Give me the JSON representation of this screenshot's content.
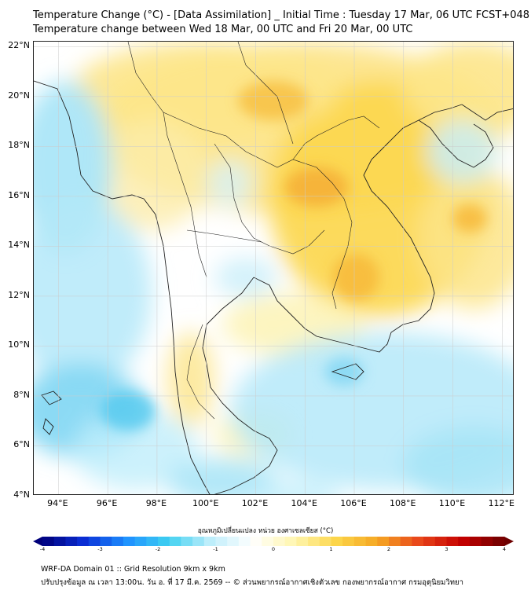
{
  "header": {
    "title_line1": "Temperature Change (°C) - [Data Assimilation] _ Initial Time : Tuesday 17 Mar, 06 UTC FCST+048",
    "title_line2": "Temperature change between Wed 18 Mar, 00 UTC and Fri 20 Mar, 00 UTC"
  },
  "map": {
    "lat_labels": [
      "22°N",
      "20°N",
      "18°N",
      "16°N",
      "14°N",
      "12°N",
      "10°N",
      "8°N",
      "6°N",
      "4°N"
    ],
    "lon_labels": [
      "94°E",
      "96°E",
      "98°E",
      "100°E",
      "102°E",
      "104°E",
      "106°E",
      "108°E",
      "110°E",
      "112°E"
    ],
    "extent": {
      "lon_min": 93,
      "lon_max": 112.5,
      "lat_min": 4,
      "lat_max": 22.2
    },
    "grid": true,
    "colors": {
      "strong_warm": "#f29a1e",
      "warm": "#fcd64a",
      "light_warm": "#fdf2b0",
      "neutral": "#ffffff",
      "light_cool": "#c8eefa",
      "cool": "#8fdcf5",
      "coastline": "#222222",
      "gridline": "#cccccc"
    }
  },
  "colorbar": {
    "label": "อุณหภูมิเปลี่ยนแปลง หน่วย องศาเซลเซียส (°C)",
    "min": -4,
    "max": 4,
    "ticks": [
      "-4",
      "-3",
      "-2",
      "-1",
      "0",
      "1",
      "2",
      "3",
      "4"
    ],
    "stops": [
      "#00007a",
      "#0a2fd6",
      "#1e90ff",
      "#3fd0f0",
      "#bfeefb",
      "#ffffff",
      "#fff6b0",
      "#fcd64a",
      "#f5a623",
      "#e8431a",
      "#c40000",
      "#6e0000"
    ]
  },
  "footer": {
    "line1": "WRF-DA Domain 01 :: Grid Resolution 9km x 9km",
    "line2": "ปรับปรุงข้อมูล ณ เวลา 13:00น. วัน อ. ที่ 17 มี.ค. 2569 -- © ส่วนพยากรณ์อากาศเชิงตัวเลข กองพยากรณ์อากาศ กรมอุตุนิยมวิทยา"
  }
}
